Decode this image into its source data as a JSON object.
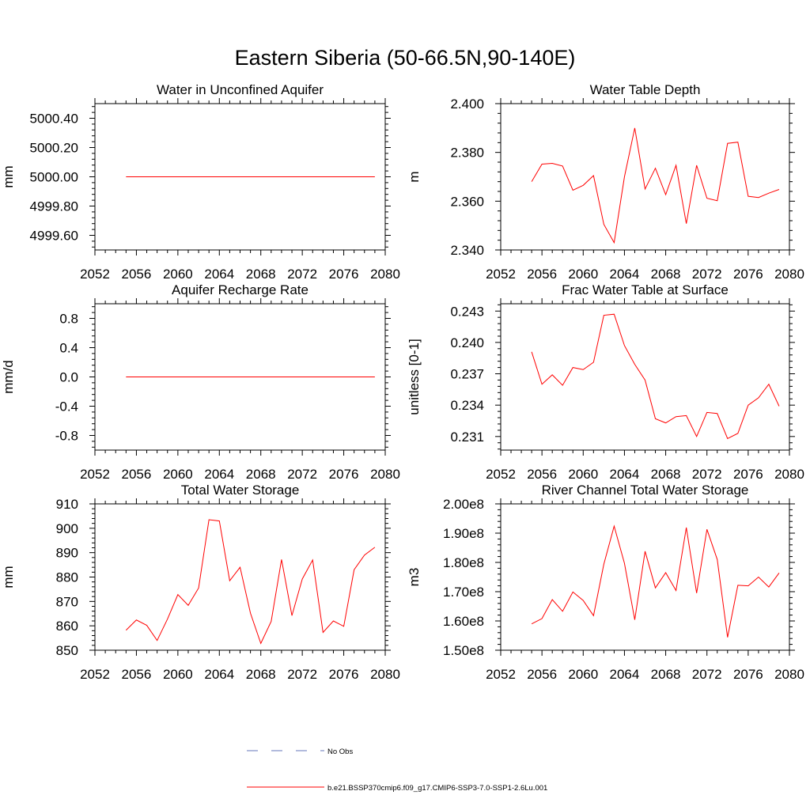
{
  "figure": {
    "title": "Eastern Siberia (50-66.5N,90-140E)"
  },
  "chart_data": [
    {
      "type": "line",
      "title": "Water in Unconfined Aquifer",
      "ylabel": "mm",
      "xlim": [
        2052,
        2080
      ],
      "ylim": [
        4999.5,
        5000.5
      ],
      "xticks": [
        2052,
        2056,
        2060,
        2064,
        2068,
        2072,
        2076,
        2080
      ],
      "yticks": [
        4999.6,
        4999.8,
        5000.0,
        5000.2,
        5000.4
      ],
      "ytick_labels": [
        "4999.60",
        "4999.80",
        "5000.00",
        "5000.20",
        "5000.40"
      ],
      "series": [
        {
          "color": "#ff0000",
          "x": [
            2055,
            2056,
            2057,
            2058,
            2059,
            2060,
            2061,
            2062,
            2063,
            2064,
            2065,
            2066,
            2067,
            2068,
            2069,
            2070,
            2071,
            2072,
            2073,
            2074,
            2075,
            2076,
            2077,
            2078,
            2079
          ],
          "y": [
            5000,
            5000,
            5000,
            5000,
            5000,
            5000,
            5000,
            5000,
            5000,
            5000,
            5000,
            5000,
            5000,
            5000,
            5000,
            5000,
            5000,
            5000,
            5000,
            5000,
            5000,
            5000,
            5000,
            5000,
            5000
          ]
        }
      ]
    },
    {
      "type": "line",
      "title": "Water Table Depth",
      "ylabel": "m",
      "xlim": [
        2052,
        2080
      ],
      "ylim": [
        2.34,
        2.4
      ],
      "xticks": [
        2052,
        2056,
        2060,
        2064,
        2068,
        2072,
        2076,
        2080
      ],
      "yticks": [
        2.34,
        2.36,
        2.38,
        2.4
      ],
      "ytick_labels": [
        "2.340",
        "2.360",
        "2.380",
        "2.400"
      ],
      "series": [
        {
          "color": "#ff0000",
          "x": [
            2055,
            2056,
            2057,
            2058,
            2059,
            2060,
            2061,
            2062,
            2063,
            2064,
            2065,
            2066,
            2067,
            2068,
            2069,
            2070,
            2071,
            2072,
            2073,
            2074,
            2075,
            2076,
            2077,
            2078,
            2079
          ],
          "y": [
            2.368,
            2.3752,
            2.3755,
            2.3744,
            2.3645,
            2.3665,
            2.3705,
            2.3505,
            2.343,
            2.37,
            2.39,
            2.365,
            2.3735,
            2.3627,
            2.3747,
            2.3508,
            2.3747,
            2.3612,
            2.3602,
            2.3837,
            2.3842,
            2.362,
            2.3615,
            2.3633,
            2.3648
          ]
        }
      ]
    },
    {
      "type": "line",
      "title": "Aquifer Recharge Rate",
      "ylabel": "mm/d",
      "xlim": [
        2052,
        2080
      ],
      "ylim": [
        -1.0,
        1.0
      ],
      "xticks": [
        2052,
        2056,
        2060,
        2064,
        2068,
        2072,
        2076,
        2080
      ],
      "yticks": [
        -0.8,
        -0.4,
        0.0,
        0.4,
        0.8
      ],
      "ytick_labels": [
        "-0.8",
        "-0.4",
        "0.0",
        "0.4",
        "0.8"
      ],
      "series": [
        {
          "color": "#ff0000",
          "x": [
            2055,
            2056,
            2057,
            2058,
            2059,
            2060,
            2061,
            2062,
            2063,
            2064,
            2065,
            2066,
            2067,
            2068,
            2069,
            2070,
            2071,
            2072,
            2073,
            2074,
            2075,
            2076,
            2077,
            2078,
            2079
          ],
          "y": [
            0,
            0,
            0,
            0,
            0,
            0,
            0,
            0,
            0,
            0,
            0,
            0,
            0,
            0,
            0,
            0,
            0,
            0,
            0,
            0,
            0,
            0,
            0,
            0,
            0
          ]
        }
      ]
    },
    {
      "type": "line",
      "title": "Frac Water Table at Surface",
      "ylabel": "unitless [0-1]",
      "xlim": [
        2052,
        2080
      ],
      "ylim": [
        0.2297,
        0.2437
      ],
      "xticks": [
        2052,
        2056,
        2060,
        2064,
        2068,
        2072,
        2076,
        2080
      ],
      "yticks": [
        0.231,
        0.234,
        0.237,
        0.24,
        0.243
      ],
      "ytick_labels": [
        "0.231",
        "0.234",
        "0.237",
        "0.240",
        "0.243"
      ],
      "series": [
        {
          "color": "#ff0000",
          "x": [
            2055,
            2056,
            2057,
            2058,
            2059,
            2060,
            2061,
            2062,
            2063,
            2064,
            2065,
            2066,
            2067,
            2068,
            2069,
            2070,
            2071,
            2072,
            2073,
            2074,
            2075,
            2076,
            2077,
            2078,
            2079
          ],
          "y": [
            0.2391,
            0.236,
            0.2369,
            0.2359,
            0.2376,
            0.2374,
            0.2381,
            0.2426,
            0.2427,
            0.2397,
            0.2379,
            0.2364,
            0.2327,
            0.2323,
            0.2329,
            0.233,
            0.231,
            0.2333,
            0.2332,
            0.2308,
            0.2313,
            0.234,
            0.2347,
            0.236,
            0.2339
          ]
        }
      ]
    },
    {
      "type": "line",
      "title": "Total Water Storage",
      "ylabel": "mm",
      "xlim": [
        2052,
        2080
      ],
      "ylim": [
        850,
        910
      ],
      "xticks": [
        2052,
        2056,
        2060,
        2064,
        2068,
        2072,
        2076,
        2080
      ],
      "yticks": [
        850,
        860,
        870,
        880,
        890,
        900,
        910
      ],
      "ytick_labels": [
        "850",
        "860",
        "870",
        "880",
        "890",
        "900",
        "910"
      ],
      "series": [
        {
          "color": "#ff0000",
          "x": [
            2055,
            2056,
            2057,
            2058,
            2059,
            2060,
            2061,
            2062,
            2063,
            2064,
            2065,
            2066,
            2067,
            2068,
            2069,
            2070,
            2071,
            2072,
            2073,
            2074,
            2075,
            2076,
            2077,
            2078,
            2079
          ],
          "y": [
            858.2,
            862.4,
            860.2,
            854.0,
            862.8,
            872.8,
            868.4,
            875.5,
            903.5,
            903.0,
            878.5,
            884.0,
            865.2,
            852.8,
            861.8,
            887.2,
            864.2,
            879.2,
            887.0,
            857.3,
            862.0,
            859.8,
            883.0,
            889.0,
            892.2
          ]
        }
      ]
    },
    {
      "type": "line",
      "title": "River Channel Total Water Storage",
      "ylabel": "m3",
      "xlim": [
        2052,
        2080
      ],
      "ylim": [
        150000000,
        200000000
      ],
      "xticks": [
        2052,
        2056,
        2060,
        2064,
        2068,
        2072,
        2076,
        2080
      ],
      "yticks": [
        150000000,
        160000000,
        170000000,
        180000000,
        190000000,
        200000000
      ],
      "ytick_labels": [
        "1.50e8",
        "1.60e8",
        "1.70e8",
        "1.80e8",
        "1.90e8",
        "2.00e8"
      ],
      "series": [
        {
          "color": "#ff0000",
          "x": [
            2055,
            2056,
            2057,
            2058,
            2059,
            2060,
            2061,
            2062,
            2063,
            2064,
            2065,
            2066,
            2067,
            2068,
            2069,
            2070,
            2071,
            2072,
            2073,
            2074,
            2075,
            2076,
            2077,
            2078,
            2079
          ],
          "y": [
            159000000,
            160800000,
            167300000,
            163300000,
            169900000,
            167000000,
            161800000,
            179400000,
            192400000,
            179700000,
            160400000,
            183800000,
            171300000,
            176500000,
            170400000,
            191900000,
            169500000,
            191300000,
            181000000,
            154400000,
            172200000,
            172000000,
            175000000,
            171600000,
            176400000
          ]
        }
      ]
    }
  ],
  "legend": {
    "placement": "bottom-center",
    "entries": [
      {
        "label": "No Obs",
        "color": "#6677bb",
        "style": "dashed"
      },
      {
        "label": "b.e21.BSSP370cmip6.f09_g17.CMIP6-SSP3-7.0-SSP1-2.6Lu.001",
        "color": "#ff0000",
        "style": "solid"
      }
    ]
  }
}
